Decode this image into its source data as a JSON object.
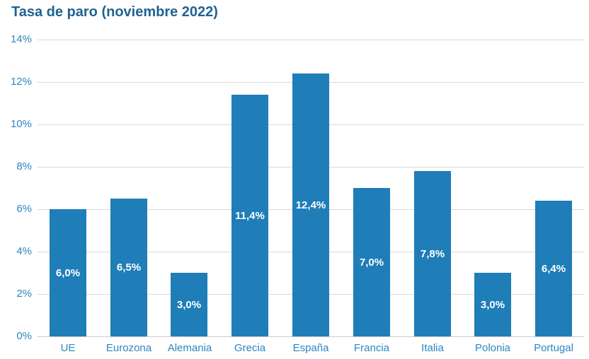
{
  "chart_data": {
    "type": "bar",
    "title": "Tasa de paro (noviembre 2022)",
    "categories": [
      "UE",
      "Eurozona",
      "Alemania",
      "Grecia",
      "España",
      "Francia",
      "Italia",
      "Polonia",
      "Portugal"
    ],
    "values": [
      6.0,
      6.5,
      3.0,
      11.4,
      12.4,
      7.0,
      7.8,
      3.0,
      6.4
    ],
    "bar_labels": [
      "6,0%",
      "6,5%",
      "3,0%",
      "11,4%",
      "12,4%",
      "7,0%",
      "7,8%",
      "3,0%",
      "6,4%"
    ],
    "y_tick_values": [
      0,
      2,
      4,
      6,
      8,
      10,
      12,
      14
    ],
    "y_tick_labels": [
      "0%",
      "2%",
      "4%",
      "6%",
      "8%",
      "10%",
      "12%",
      "14%"
    ],
    "ylim": [
      0,
      14
    ],
    "xlabel": "",
    "ylabel": "",
    "grid": true,
    "legend": "none",
    "colors": {
      "bar": "#1F7DB8",
      "title": "#1F6391",
      "axis_text": "#2E86C2",
      "bar_label_text": "#FFFFFF",
      "gridline": "#D9D9D9",
      "axis_line": "#CCCCCC",
      "background": "#FFFFFF"
    }
  }
}
